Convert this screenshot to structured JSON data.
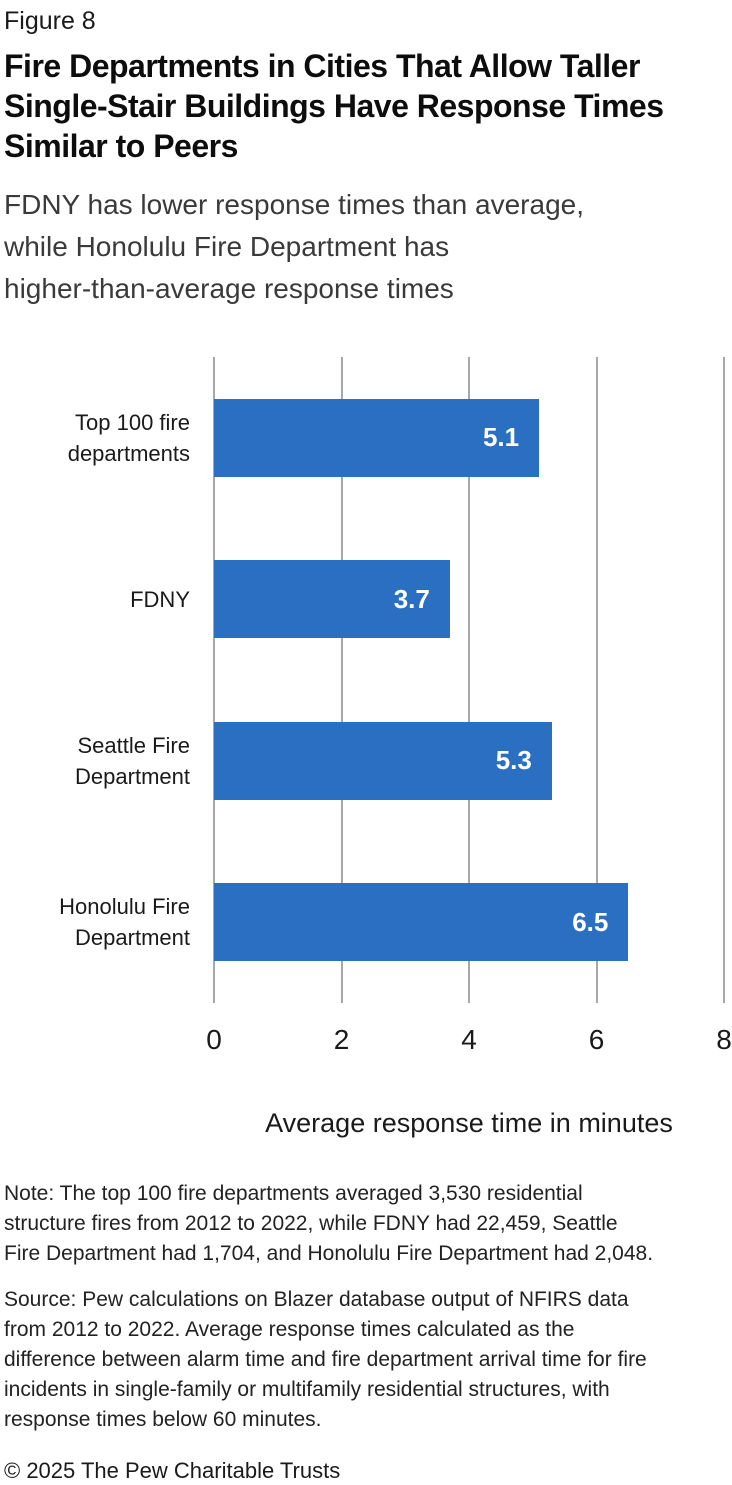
{
  "figure_label": "Figure 8",
  "title": "Fire Departments in Cities That Allow Taller\nSingle-Stair Buildings Have Response Times\nSimilar to Peers",
  "subtitle": "FDNY has lower response times than average,\nwhile Honolulu Fire Department has\nhigher-than-average response times",
  "chart_data": {
    "type": "bar",
    "orientation": "horizontal",
    "categories": [
      "Top 100 fire\ndepartments",
      "FDNY",
      "Seattle Fire\nDepartment",
      "Honolulu Fire\nDepartment"
    ],
    "values": [
      5.1,
      3.7,
      5.3,
      6.5
    ],
    "value_labels": [
      "5.1",
      "3.7",
      "5.3",
      "6.5"
    ],
    "title": "",
    "xlabel": "Average response time in minutes",
    "ylabel": "",
    "xlim": [
      0,
      8
    ],
    "xticks": [
      "0",
      "2",
      "4",
      "6",
      "8"
    ],
    "xtick_values": [
      0,
      2,
      4,
      6,
      8
    ],
    "grid": "vertical-gridlines-on",
    "legend": "none",
    "bar_color": "#2b6fc2",
    "gridline_color": "#a8a8a8",
    "value_label_color": "#ffffff"
  },
  "note": "Note: The top 100 fire departments averaged 3,530 residential\nstructure fires from 2012 to 2022, while FDNY had 22,459, Seattle\nFire Department had 1,704, and Honolulu Fire Department had 2,048.",
  "source": "Source: Pew calculations on Blazer database output of NFIRS data\nfrom 2012 to 2022. Average response times calculated as the\ndifference between alarm time and fire department arrival time for fire\nincidents in single-family or multifamily residential structures, with\nresponse times below 60 minutes.",
  "copyright": "© 2025 The Pew Charitable Trusts"
}
